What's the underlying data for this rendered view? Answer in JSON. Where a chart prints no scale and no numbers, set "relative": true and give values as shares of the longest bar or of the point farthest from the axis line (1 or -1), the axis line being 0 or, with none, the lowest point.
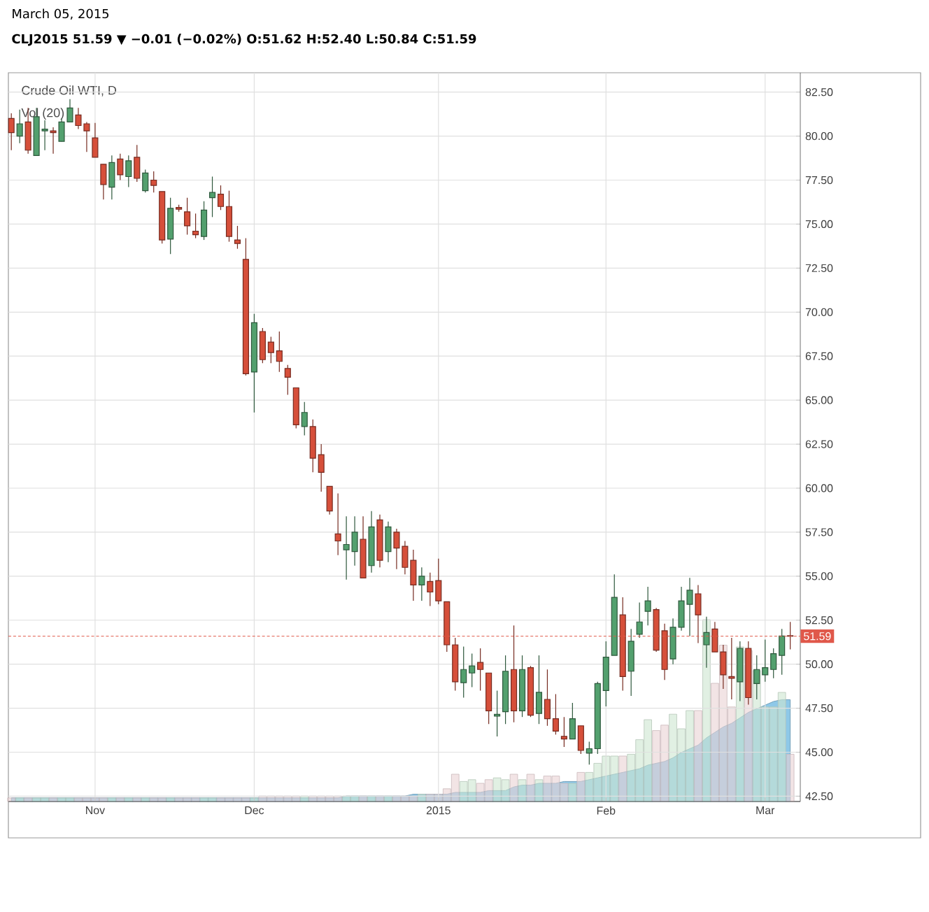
{
  "chart_data": [
    {
      "type": "candlestick",
      "title": "Crude Oil WTI, D",
      "annotations": [
        "March 05, 2015",
        "CLJ2015 51.59 ▼ −0.01 (−0.02%) O:51.62 H:52.40 L:50.84 C:51.59"
      ],
      "categories": [
        null,
        null,
        null,
        null,
        null,
        null,
        null,
        null,
        null,
        null,
        "Nov",
        null,
        null,
        null,
        null,
        null,
        null,
        null,
        null,
        null,
        null,
        null,
        null,
        null,
        null,
        null,
        null,
        null,
        null,
        "Dec",
        null,
        null,
        null,
        null,
        null,
        null,
        null,
        null,
        null,
        null,
        null,
        null,
        null,
        null,
        null,
        null,
        null,
        null,
        null,
        null,
        null,
        "2015",
        null,
        null,
        null,
        null,
        null,
        null,
        null,
        null,
        null,
        null,
        null,
        null,
        null,
        null,
        null,
        null,
        null,
        null,
        null,
        "Feb",
        null,
        null,
        null,
        null,
        null,
        null,
        null,
        null,
        null,
        null,
        null,
        null,
        null,
        null,
        null,
        null,
        null,
        null,
        "Mar",
        null,
        null,
        null
      ],
      "ohlc": [
        [
          81.0,
          81.3,
          79.2,
          80.2
        ],
        [
          80.0,
          81.5,
          79.6,
          80.7
        ],
        [
          80.8,
          81.6,
          79.0,
          79.2
        ],
        [
          78.9,
          81.6,
          78.9,
          81.1
        ],
        [
          80.3,
          80.9,
          79.2,
          80.4
        ],
        [
          80.3,
          80.5,
          79.0,
          80.2
        ],
        [
          79.7,
          81.0,
          79.7,
          80.8
        ],
        [
          80.8,
          82.1,
          80.8,
          81.6
        ],
        [
          81.2,
          81.6,
          80.4,
          80.6
        ],
        [
          80.7,
          80.8,
          79.1,
          80.3
        ],
        [
          79.9,
          80.75,
          78.8,
          78.8
        ],
        [
          78.4,
          78.4,
          76.4,
          77.25
        ],
        [
          77.1,
          78.9,
          76.4,
          78.5
        ],
        [
          78.7,
          79.0,
          77.5,
          77.8
        ],
        [
          77.7,
          78.9,
          77.1,
          78.6
        ],
        [
          78.8,
          79.5,
          77.4,
          77.6
        ],
        [
          76.9,
          78.1,
          76.8,
          77.9
        ],
        [
          77.5,
          78.0,
          76.8,
          77.2
        ],
        [
          76.85,
          76.85,
          73.9,
          74.1
        ],
        [
          74.15,
          76.5,
          73.3,
          75.9
        ],
        [
          75.95,
          76.1,
          75.7,
          75.85
        ],
        [
          75.7,
          76.5,
          74.4,
          74.9
        ],
        [
          74.6,
          75.6,
          74.2,
          74.4
        ],
        [
          74.3,
          76.3,
          74.1,
          75.8
        ],
        [
          76.5,
          77.7,
          75.4,
          76.8
        ],
        [
          76.7,
          77.2,
          75.8,
          76.0
        ],
        [
          76.0,
          76.9,
          74.0,
          74.3
        ],
        [
          74.1,
          74.9,
          73.6,
          73.9
        ],
        [
          73.0,
          74.2,
          66.4,
          66.5
        ],
        [
          66.6,
          69.9,
          64.3,
          69.4
        ],
        [
          68.9,
          69.1,
          67.1,
          67.3
        ],
        [
          68.3,
          68.6,
          67.1,
          67.7
        ],
        [
          67.8,
          68.9,
          66.6,
          67.2
        ],
        [
          66.8,
          67.0,
          65.3,
          66.3
        ],
        [
          65.7,
          65.7,
          63.4,
          63.6
        ],
        [
          63.5,
          64.9,
          63.0,
          64.3
        ],
        [
          63.5,
          63.9,
          60.9,
          61.7
        ],
        [
          61.9,
          62.5,
          59.8,
          60.9
        ],
        [
          60.1,
          60.1,
          58.5,
          58.7
        ],
        [
          57.4,
          59.7,
          56.2,
          57.0
        ],
        [
          56.5,
          58.4,
          54.8,
          56.8
        ],
        [
          56.4,
          58.4,
          55.6,
          57.5
        ],
        [
          57.1,
          58.4,
          54.9,
          54.9
        ],
        [
          55.6,
          58.7,
          55.2,
          57.8
        ],
        [
          58.2,
          58.5,
          55.5,
          55.9
        ],
        [
          56.4,
          58.1,
          55.8,
          57.8
        ],
        [
          57.5,
          57.7,
          55.4,
          56.6
        ],
        [
          56.7,
          57.0,
          55.1,
          55.5
        ],
        [
          55.9,
          56.5,
          53.6,
          54.5
        ],
        [
          54.5,
          55.5,
          53.6,
          55.0
        ],
        [
          54.7,
          55.2,
          53.3,
          54.1
        ],
        [
          54.75,
          56.0,
          53.4,
          53.6
        ],
        [
          53.55,
          53.55,
          50.7,
          51.1
        ],
        [
          51.1,
          51.5,
          48.5,
          49.0
        ],
        [
          48.95,
          51.0,
          48.1,
          49.7
        ],
        [
          49.5,
          50.6,
          48.7,
          49.9
        ],
        [
          50.1,
          50.9,
          48.5,
          49.7
        ],
        [
          49.5,
          49.5,
          46.6,
          47.35
        ],
        [
          47.05,
          48.5,
          45.9,
          47.15
        ],
        [
          47.3,
          50.5,
          46.6,
          49.6
        ],
        [
          49.7,
          52.2,
          46.7,
          47.35
        ],
        [
          47.35,
          50.5,
          47.0,
          49.7
        ],
        [
          49.8,
          49.9,
          47.0,
          47.1
        ],
        [
          47.2,
          50.5,
          46.6,
          48.4
        ],
        [
          48.0,
          49.7,
          46.5,
          46.9
        ],
        [
          46.9,
          48.3,
          46.0,
          46.2
        ],
        [
          45.9,
          47.0,
          45.3,
          45.75
        ],
        [
          45.75,
          47.8,
          45.75,
          46.9
        ],
        [
          46.5,
          46.5,
          44.9,
          45.1
        ],
        [
          44.95,
          45.6,
          44.3,
          45.2
        ],
        [
          45.2,
          49.0,
          44.9,
          48.9
        ],
        [
          48.5,
          51.3,
          47.6,
          50.4
        ],
        [
          50.5,
          55.1,
          50.5,
          53.8
        ],
        [
          52.8,
          53.8,
          48.5,
          49.3
        ],
        [
          49.6,
          52.0,
          48.2,
          51.3
        ],
        [
          51.7,
          53.5,
          51.5,
          52.4
        ],
        [
          53.0,
          54.4,
          52.2,
          53.6
        ],
        [
          53.1,
          53.2,
          50.7,
          50.8
        ],
        [
          51.9,
          52.3,
          49.1,
          49.7
        ],
        [
          50.3,
          52.6,
          50.0,
          52.1
        ],
        [
          52.1,
          54.4,
          51.9,
          53.6
        ],
        [
          53.4,
          54.9,
          51.6,
          54.2
        ],
        [
          54.0,
          54.5,
          51.2,
          52.8
        ],
        [
          51.1,
          52.7,
          49.8,
          51.8
        ],
        [
          52.0,
          52.4,
          50.7,
          50.7
        ],
        [
          50.7,
          51.1,
          48.6,
          49.4
        ],
        [
          49.3,
          51.5,
          48.0,
          49.2
        ],
        [
          49.0,
          51.3,
          47.9,
          50.9
        ],
        [
          50.9,
          51.3,
          47.7,
          48.1
        ],
        [
          48.9,
          50.5,
          48.0,
          49.7
        ],
        [
          49.4,
          51.4,
          49.0,
          49.8
        ],
        [
          49.7,
          50.9,
          49.2,
          50.6
        ],
        [
          50.5,
          52.0,
          49.4,
          51.6
        ],
        [
          51.62,
          52.4,
          50.84,
          51.59
        ]
      ],
      "colors": [
        "#d64f3a",
        "#53a06e",
        "#d64f3a",
        "#53a06e",
        "#53a06e",
        "#d64f3a",
        "#53a06e",
        "#53a06e",
        "#d64f3a",
        "#d64f3a",
        "#d64f3a",
        "#d64f3a",
        "#53a06e",
        "#d64f3a",
        "#53a06e",
        "#d64f3a",
        "#53a06e",
        "#d64f3a",
        "#d64f3a",
        "#53a06e",
        "#d64f3a",
        "#d64f3a",
        "#d64f3a",
        "#53a06e",
        "#53a06e",
        "#d64f3a",
        "#d64f3a",
        "#d64f3a",
        "#d64f3a",
        "#53a06e",
        "#d64f3a",
        "#d64f3a",
        "#d64f3a",
        "#d64f3a",
        "#d64f3a",
        "#53a06e",
        "#d64f3a",
        "#d64f3a",
        "#d64f3a",
        "#d64f3a",
        "#53a06e",
        "#53a06e",
        "#d64f3a",
        "#53a06e",
        "#d64f3a",
        "#53a06e",
        "#d64f3a",
        "#d64f3a",
        "#d64f3a",
        "#53a06e",
        "#d64f3a",
        "#d64f3a",
        "#d64f3a",
        "#d64f3a",
        "#53a06e",
        "#53a06e",
        "#d64f3a",
        "#d64f3a",
        "#53a06e",
        "#53a06e",
        "#d64f3a",
        "#53a06e",
        "#d64f3a",
        "#53a06e",
        "#d64f3a",
        "#d64f3a",
        "#d64f3a",
        "#53a06e",
        "#d64f3a",
        "#53a06e",
        "#53a06e",
        "#53a06e",
        "#53a06e",
        "#d64f3a",
        "#53a06e",
        "#53a06e",
        "#53a06e",
        "#d64f3a",
        "#d64f3a",
        "#53a06e",
        "#53a06e",
        "#53a06e",
        "#d64f3a",
        "#53a06e",
        "#d64f3a",
        "#d64f3a",
        "#d64f3a",
        "#53a06e",
        "#d64f3a",
        "#53a06e",
        "#53a06e",
        "#53a06e",
        "#53a06e",
        "#d64f3a"
      ],
      "ylim": [
        42.2,
        83.6
      ],
      "yticks": [
        {
          "value": 42.5,
          "label": "42.50"
        },
        {
          "value": 45,
          "label": "45.00"
        },
        {
          "value": 47.5,
          "label": "47.50"
        },
        {
          "value": 50,
          "label": "50.00"
        },
        {
          "value": 52.5,
          "label": "52.50"
        },
        {
          "value": 55,
          "label": "55.00"
        },
        {
          "value": 57.5,
          "label": "57.50"
        },
        {
          "value": 60,
          "label": "60.00"
        },
        {
          "value": 62.5,
          "label": "62.50"
        },
        {
          "value": 65,
          "label": "65.00"
        },
        {
          "value": 67.5,
          "label": "67.50"
        },
        {
          "value": 70,
          "label": "70.00"
        },
        {
          "value": 72.5,
          "label": "72.50"
        },
        {
          "value": 75,
          "label": "75.00"
        },
        {
          "value": 77.5,
          "label": "77.50"
        },
        {
          "value": 80,
          "label": "80.00"
        },
        {
          "value": 82.5,
          "label": "82.50"
        }
      ],
      "ref_lines": [
        {
          "axis": "y",
          "value": 51.59,
          "label": "51.59",
          "color": "#e0584a",
          "line_style": "dashed"
        }
      ],
      "grid": true
    },
    {
      "type": "bar",
      "title": "Vol (20)",
      "relative": true,
      "categories": [
        null,
        null,
        null,
        null,
        null,
        null,
        null,
        null,
        null,
        null,
        null,
        null,
        null,
        null,
        null,
        null,
        null,
        null,
        null,
        null,
        null,
        null,
        null,
        null,
        null,
        null,
        null,
        null,
        null,
        null,
        null,
        null,
        null,
        null,
        null,
        null,
        null,
        null,
        null,
        null,
        null,
        null,
        null,
        null,
        null,
        null,
        null,
        null,
        null,
        null,
        null,
        null,
        null,
        null,
        null,
        null,
        null,
        null,
        null,
        null,
        null,
        null,
        null,
        null,
        null,
        null,
        null,
        null,
        null,
        null,
        null,
        null,
        null,
        null,
        null,
        null,
        null,
        null,
        null,
        null,
        null,
        null,
        null,
        null,
        null,
        null,
        null,
        null,
        null,
        null,
        null,
        null,
        null,
        null
      ],
      "series": [
        {
          "type": "area",
          "color": "#8ec8e8",
          "values": [
            0.02,
            0.02,
            0.02,
            0.02,
            0.02,
            0.02,
            0.02,
            0.02,
            0.02,
            0.02,
            0.02,
            0.02,
            0.02,
            0.02,
            0.02,
            0.02,
            0.02,
            0.02,
            0.02,
            0.02,
            0.02,
            0.02,
            0.02,
            0.02,
            0.02,
            0.02,
            0.02,
            0.02,
            0.02,
            0.02,
            0.02,
            0.02,
            0.02,
            0.02,
            0.02,
            0.02,
            0.02,
            0.02,
            0.02,
            0.02,
            0.03,
            0.03,
            0.03,
            0.03,
            0.03,
            0.03,
            0.03,
            0.03,
            0.04,
            0.04,
            0.04,
            0.04,
            0.04,
            0.05,
            0.05,
            0.05,
            0.05,
            0.06,
            0.06,
            0.06,
            0.08,
            0.09,
            0.09,
            0.1,
            0.1,
            0.1,
            0.11,
            0.11,
            0.11,
            0.12,
            0.13,
            0.14,
            0.15,
            0.16,
            0.17,
            0.18,
            0.2,
            0.21,
            0.22,
            0.24,
            0.27,
            0.29,
            0.31,
            0.35,
            0.38,
            0.41,
            0.43,
            0.46,
            0.49,
            0.51,
            0.53,
            0.55,
            0.56,
            0.56
          ]
        },
        {
          "type": "bar",
          "values": [
            0.02,
            0.02,
            0.02,
            0.02,
            0.02,
            0.02,
            0.02,
            0.02,
            0.02,
            0.02,
            0.02,
            0.02,
            0.02,
            0.02,
            0.02,
            0.02,
            0.02,
            0.02,
            0.02,
            0.02,
            0.02,
            0.02,
            0.02,
            0.02,
            0.02,
            0.02,
            0.02,
            0.02,
            0.02,
            0.02,
            0.03,
            0.03,
            0.03,
            0.03,
            0.03,
            0.03,
            0.03,
            0.03,
            0.03,
            0.03,
            0.03,
            0.03,
            0.03,
            0.03,
            0.03,
            0.03,
            0.03,
            0.03,
            0.03,
            0.04,
            0.04,
            0.04,
            0.07,
            0.15,
            0.11,
            0.12,
            0.1,
            0.12,
            0.13,
            0.12,
            0.15,
            0.12,
            0.15,
            0.12,
            0.14,
            0.14,
            0.1,
            0.1,
            0.16,
            0.16,
            0.21,
            0.25,
            0.25,
            0.25,
            0.26,
            0.34,
            0.45,
            0.39,
            0.42,
            0.48,
            0.4,
            0.5,
            0.5,
            1,
            0.65,
            0.86,
            0.52,
            0.85,
            0.83,
            0.72,
            0.52,
            0.52,
            0.6,
            0.26
          ],
          "colors": [
            "#ead2d4",
            "#cde6d1",
            "#ead2d4",
            "#cde6d1",
            "#cde6d1",
            "#ead2d4",
            "#cde6d1",
            "#cde6d1",
            "#ead2d4",
            "#ead2d4",
            "#ead2d4",
            "#ead2d4",
            "#cde6d1",
            "#ead2d4",
            "#cde6d1",
            "#ead2d4",
            "#cde6d1",
            "#ead2d4",
            "#ead2d4",
            "#cde6d1",
            "#ead2d4",
            "#ead2d4",
            "#ead2d4",
            "#cde6d1",
            "#cde6d1",
            "#ead2d4",
            "#ead2d4",
            "#ead2d4",
            "#ead2d4",
            "#cde6d1",
            "#ead2d4",
            "#ead2d4",
            "#ead2d4",
            "#ead2d4",
            "#ead2d4",
            "#cde6d1",
            "#ead2d4",
            "#ead2d4",
            "#ead2d4",
            "#ead2d4",
            "#cde6d1",
            "#cde6d1",
            "#ead2d4",
            "#cde6d1",
            "#ead2d4",
            "#cde6d1",
            "#ead2d4",
            "#ead2d4",
            "#ead2d4",
            "#cde6d1",
            "#ead2d4",
            "#ead2d4",
            "#ead2d4",
            "#ead2d4",
            "#cde6d1",
            "#cde6d1",
            "#ead2d4",
            "#ead2d4",
            "#cde6d1",
            "#cde6d1",
            "#ead2d4",
            "#cde6d1",
            "#ead2d4",
            "#cde6d1",
            "#ead2d4",
            "#ead2d4",
            "#ead2d4",
            "#cde6d1",
            "#ead2d4",
            "#cde6d1",
            "#cde6d1",
            "#cde6d1",
            "#cde6d1",
            "#ead2d4",
            "#cde6d1",
            "#cde6d1",
            "#cde6d1",
            "#ead2d4",
            "#ead2d4",
            "#cde6d1",
            "#cde6d1",
            "#cde6d1",
            "#ead2d4",
            "#cde6d1",
            "#ead2d4",
            "#ead2d4",
            "#ead2d4",
            "#cde6d1",
            "#ead2d4",
            "#cde6d1",
            "#cde6d1",
            "#cde6d1",
            "#cde6d1",
            "#ead2d4"
          ]
        }
      ]
    }
  ]
}
